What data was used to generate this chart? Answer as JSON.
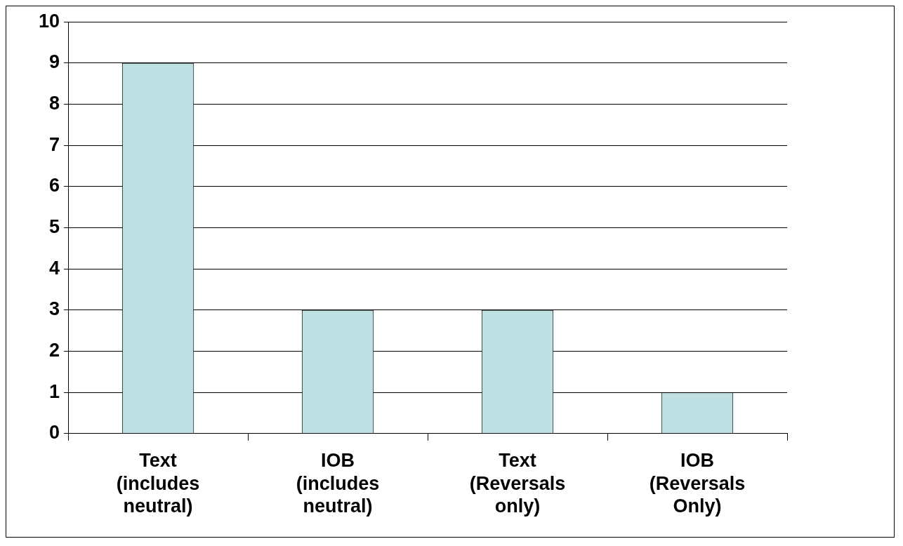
{
  "chart_data": {
    "type": "bar",
    "categories": [
      "Text (includes neutral)",
      "IOB (includes neutral)",
      "Text (Reversals only)",
      "IOB (Reversals Only)"
    ],
    "values": [
      9,
      3,
      3,
      1
    ],
    "color": "#bfe0e2",
    "ylim": [
      0,
      10
    ],
    "yticks": [
      0,
      1,
      2,
      3,
      4,
      5,
      6,
      7,
      8,
      9,
      10
    ],
    "grid": "y",
    "legend": false
  }
}
